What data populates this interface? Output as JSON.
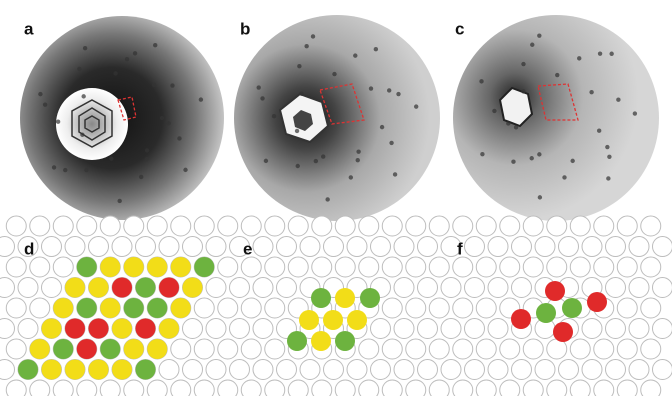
{
  "panel_labels": [
    "a",
    "b",
    "c",
    "d",
    "e",
    "f"
  ]
}
